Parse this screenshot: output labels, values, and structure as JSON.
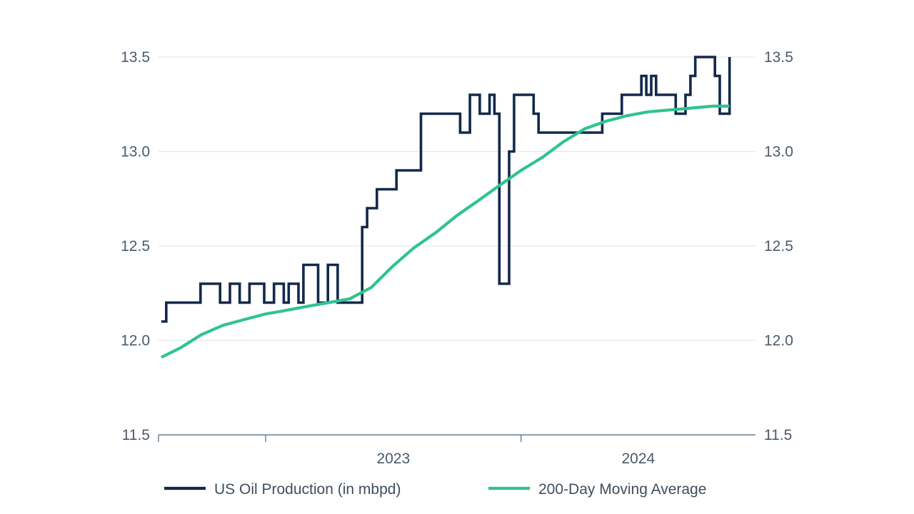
{
  "chart_data": {
    "type": "line",
    "title": "",
    "xlabel": "",
    "ylabel": "",
    "x_range": [
      "2022-08-01",
      "2024-12-01"
    ],
    "x_tick_labels": [
      {
        "label": "2023",
        "start": "2023-01-01",
        "end": "2024-01-01"
      },
      {
        "label": "2024",
        "start": "2024-01-01",
        "end": "2025-01-01"
      }
    ],
    "y_ticks": [
      "11.5",
      "12.0",
      "12.5",
      "13.0",
      "13.5"
    ],
    "y_range": [
      11.5,
      13.5
    ],
    "secondary_y_axis": true,
    "grid": true,
    "legend_position": "bottom",
    "series": [
      {
        "name": "US Oil Production (in mbpd)",
        "color": "#13294b",
        "step": true,
        "points": [
          [
            "2022-08-05",
            12.1
          ],
          [
            "2022-08-12",
            12.2
          ],
          [
            "2022-09-30",
            12.3
          ],
          [
            "2022-10-28",
            12.2
          ],
          [
            "2022-11-11",
            12.3
          ],
          [
            "2022-11-25",
            12.2
          ],
          [
            "2022-12-09",
            12.3
          ],
          [
            "2022-12-30",
            12.2
          ],
          [
            "2023-01-13",
            12.3
          ],
          [
            "2023-01-27",
            12.2
          ],
          [
            "2023-02-03",
            12.3
          ],
          [
            "2023-02-17",
            12.2
          ],
          [
            "2023-02-24",
            12.4
          ],
          [
            "2023-03-17",
            12.2
          ],
          [
            "2023-03-31",
            12.4
          ],
          [
            "2023-04-14",
            12.2
          ],
          [
            "2023-04-28",
            12.2
          ],
          [
            "2023-05-12",
            12.2
          ],
          [
            "2023-05-19",
            12.6
          ],
          [
            "2023-05-26",
            12.7
          ],
          [
            "2023-06-09",
            12.8
          ],
          [
            "2023-07-07",
            12.9
          ],
          [
            "2023-08-11",
            13.2
          ],
          [
            "2023-10-06",
            13.1
          ],
          [
            "2023-10-20",
            13.3
          ],
          [
            "2023-11-03",
            13.2
          ],
          [
            "2023-11-17",
            13.3
          ],
          [
            "2023-11-24",
            13.2
          ],
          [
            "2023-12-01",
            12.3
          ],
          [
            "2023-12-15",
            13.0
          ],
          [
            "2023-12-22",
            13.3
          ],
          [
            "2024-01-19",
            13.2
          ],
          [
            "2024-01-26",
            13.1
          ],
          [
            "2024-04-26",
            13.2
          ],
          [
            "2024-05-24",
            13.3
          ],
          [
            "2024-06-21",
            13.4
          ],
          [
            "2024-06-28",
            13.3
          ],
          [
            "2024-07-05",
            13.4
          ],
          [
            "2024-07-12",
            13.3
          ],
          [
            "2024-08-09",
            13.2
          ],
          [
            "2024-08-23",
            13.3
          ],
          [
            "2024-08-30",
            13.4
          ],
          [
            "2024-09-06",
            13.5
          ],
          [
            "2024-10-04",
            13.4
          ],
          [
            "2024-10-11",
            13.2
          ],
          [
            "2024-10-25",
            13.5
          ]
        ]
      },
      {
        "name": "200-Day Moving Average",
        "color": "#2fc48d",
        "step": false,
        "points": [
          [
            "2022-08-05",
            11.91
          ],
          [
            "2022-09-01",
            11.96
          ],
          [
            "2022-10-01",
            12.03
          ],
          [
            "2022-11-01",
            12.08
          ],
          [
            "2022-12-01",
            12.11
          ],
          [
            "2023-01-01",
            12.14
          ],
          [
            "2023-02-01",
            12.16
          ],
          [
            "2023-03-01",
            12.18
          ],
          [
            "2023-04-01",
            12.2
          ],
          [
            "2023-05-01",
            12.22
          ],
          [
            "2023-06-01",
            12.28
          ],
          [
            "2023-07-01",
            12.39
          ],
          [
            "2023-08-01",
            12.49
          ],
          [
            "2023-09-01",
            12.57
          ],
          [
            "2023-10-01",
            12.66
          ],
          [
            "2023-11-01",
            12.74
          ],
          [
            "2023-12-01",
            12.82
          ],
          [
            "2024-01-01",
            12.9
          ],
          [
            "2024-02-01",
            12.97
          ],
          [
            "2024-03-01",
            13.05
          ],
          [
            "2024-04-01",
            13.12
          ],
          [
            "2024-05-01",
            13.16
          ],
          [
            "2024-06-01",
            13.19
          ],
          [
            "2024-07-01",
            13.21
          ],
          [
            "2024-08-01",
            13.22
          ],
          [
            "2024-09-01",
            13.23
          ],
          [
            "2024-10-01",
            13.24
          ],
          [
            "2024-10-25",
            13.24
          ]
        ]
      }
    ]
  }
}
